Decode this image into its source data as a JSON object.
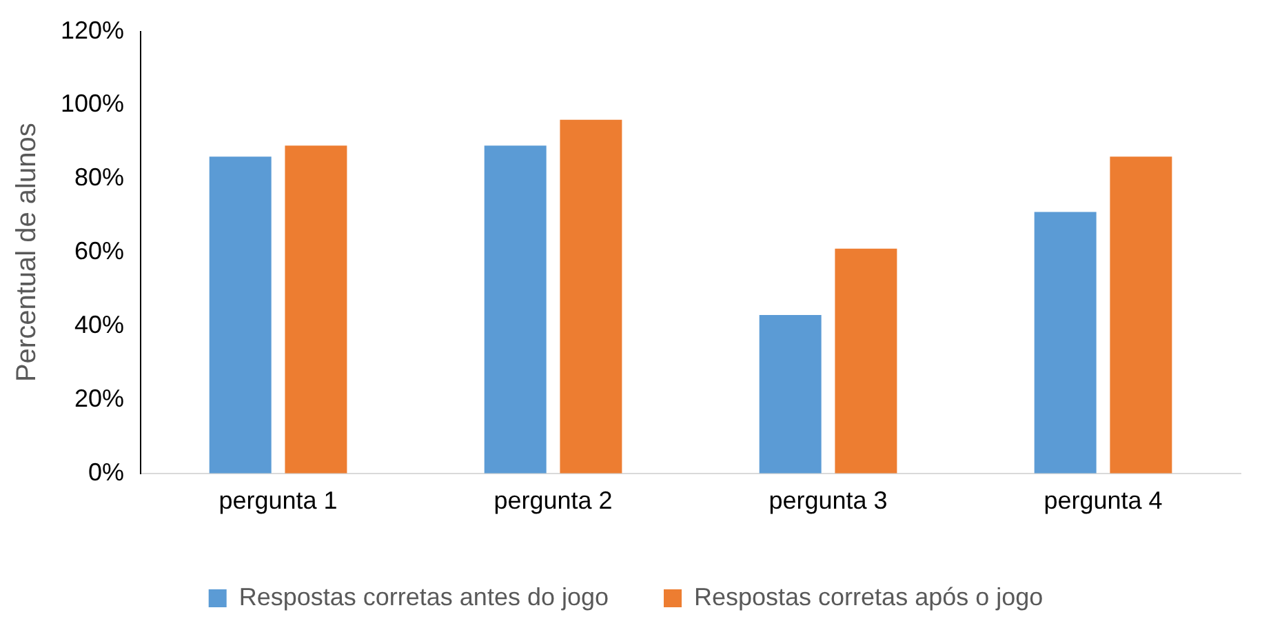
{
  "chart_data": {
    "type": "bar",
    "ylabel": "Percentual de alunos",
    "categories": [
      "pergunta 1",
      "pergunta 2",
      "pergunta 3",
      "pergunta 4"
    ],
    "series": [
      {
        "name": "Respostas corretas antes do jogo",
        "color": "#5b9bd5",
        "values": [
          86,
          89,
          43,
          71
        ]
      },
      {
        "name": "Respostas corretas após o jogo",
        "color": "#ed7d31",
        "values": [
          89,
          96,
          61,
          86
        ]
      }
    ],
    "ylim": [
      0,
      120
    ],
    "yticks": [
      {
        "value": 0,
        "label": "0%"
      },
      {
        "value": 20,
        "label": "20%"
      },
      {
        "value": 40,
        "label": "40%"
      },
      {
        "value": 60,
        "label": "60%"
      },
      {
        "value": 80,
        "label": "80%"
      },
      {
        "value": 100,
        "label": "100%"
      },
      {
        "value": 120,
        "label": "120%"
      }
    ],
    "grid": false,
    "legend": "bottom"
  }
}
